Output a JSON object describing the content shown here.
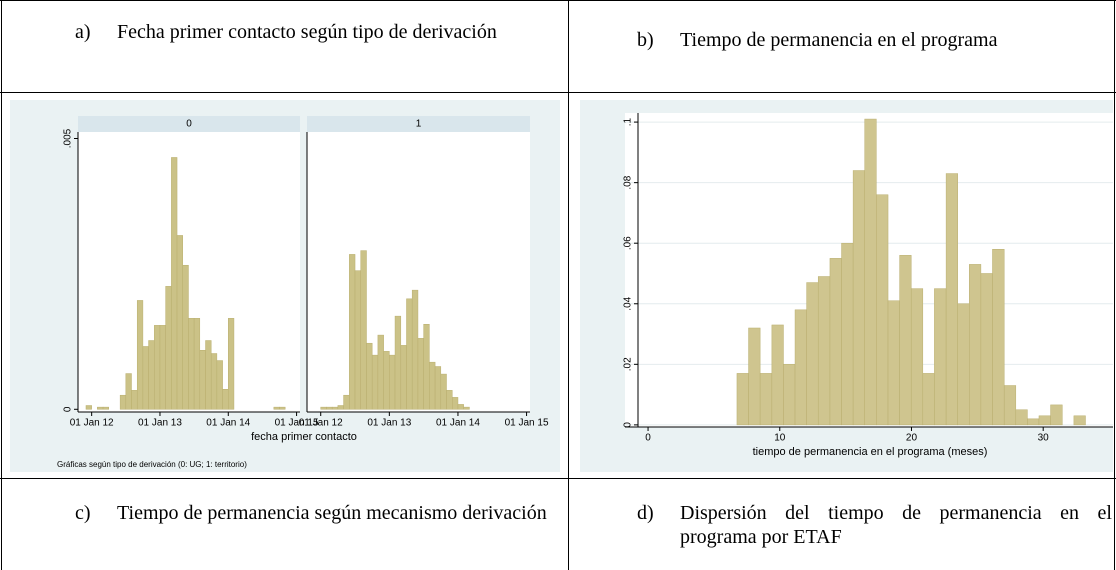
{
  "captions": {
    "a": {
      "label": "a)",
      "text": "Fecha primer contacto según tipo de derivación"
    },
    "b": {
      "label": "b)",
      "text": "Tiempo de permanencia en el programa"
    },
    "c": {
      "label": "c)",
      "text": "Tiempo de permanencia según mecanismo derivación"
    },
    "d": {
      "label": "d)",
      "text": "Dispersión del tiempo de permanencia en el programa por ETAF"
    }
  },
  "chart_data": [
    {
      "type": "histogram",
      "xlabel": "fecha primer contacto",
      "note": "Gráficas según tipo de derivación (0: UG; 1: territorio)",
      "bins": [
        2011.917,
        2012,
        2012.083,
        2012.167,
        2012.25,
        2012.333,
        2012.417,
        2012.5,
        2012.583,
        2012.667,
        2012.75,
        2012.833,
        2012.917,
        2013,
        2013.083,
        2013.167,
        2013.25,
        2013.333,
        2013.417,
        2013.5,
        2013.583,
        2013.667,
        2013.75,
        2013.833,
        2013.917,
        2014,
        2014.083,
        2014.167,
        2014.25,
        2014.333,
        2014.417,
        2014.5,
        2014.583,
        2014.667,
        2014.75,
        2014.833,
        2014.917,
        2015
      ],
      "series": [
        {
          "name": "0",
          "color": "#cbc287",
          "values": [
            7e-05,
            0,
            4e-05,
            4e-05,
            0,
            0,
            0.00026,
            0.00066,
            0.00035,
            0.00201,
            0.00116,
            0.00127,
            0.00155,
            0.00155,
            0.00227,
            0.00465,
            0.00321,
            0.00266,
            0.00168,
            0.00168,
            0.00109,
            0.00127,
            0.00103,
            0.0009,
            0.00037,
            0.00168,
            0,
            0,
            0,
            0,
            0,
            0,
            0,
            4e-05,
            4e-05,
            0,
            0
          ]
        },
        {
          "name": "1",
          "color": "#cbc287",
          "values": [
            0,
            4e-05,
            4e-05,
            4e-05,
            7e-05,
            0.00026,
            0.00286,
            0.00256,
            0.00293,
            0.00122,
            0.001,
            0.00137,
            0.00107,
            0.001,
            0.00172,
            0.00118,
            0.00204,
            0.0022,
            0.00131,
            0.00157,
            0.00087,
            0.00079,
            0.00065,
            0.00035,
            0.00022,
            9e-05,
            4e-05,
            0,
            0,
            0,
            0,
            0,
            0,
            0,
            0,
            0,
            0
          ]
        }
      ],
      "xlim": [
        2011.8,
        2015.05
      ],
      "xticks": [
        {
          "value": 2012,
          "label": "01 Jan 12"
        },
        {
          "value": 2013,
          "label": "01 Jan 13"
        },
        {
          "value": 2014,
          "label": "01 Jan 14"
        },
        {
          "value": 2015,
          "label": "01 Jan 15"
        }
      ],
      "ylim": [
        -5e-05,
        0.00512
      ],
      "yticks": [
        0,
        {
          "value": 0.005,
          "label": ".005"
        }
      ]
    },
    {
      "type": "histogram",
      "xlabel": "tiempo de permanencia en el programa (meses)",
      "bins": [
        6.75,
        7.63,
        8.51,
        9.4,
        10.28,
        11.16,
        12.04,
        12.92,
        13.81,
        14.69,
        15.57,
        16.45,
        17.33,
        18.22,
        19.1,
        19.98,
        20.86,
        21.74,
        22.63,
        23.51,
        24.39,
        25.27,
        26.15,
        27.04,
        27.92,
        28.8,
        29.68,
        30.56,
        31.45,
        32.33,
        33.21
      ],
      "series": [
        {
          "color": "#cfc58f",
          "values": [
            0.017,
            0.032,
            0.017,
            0.033,
            0.02,
            0.038,
            0.047,
            0.049,
            0.055,
            0.06,
            0.084,
            0.101,
            0.076,
            0.041,
            0.056,
            0.045,
            0.017,
            0.045,
            0.083,
            0.04,
            0.053,
            0.05,
            0.058,
            0.013,
            0.005,
            0.002,
            0.003,
            0.0066,
            0,
            0.003
          ]
        }
      ],
      "xlim": [
        -1.75,
        35.3
      ],
      "xticks": [
        0,
        10,
        20,
        30
      ],
      "ylim": [
        -0.0007,
        0.103
      ],
      "yticks": [
        0,
        {
          "value": 0.02,
          "label": ".02"
        },
        {
          "value": 0.04,
          "label": ".04"
        },
        {
          "value": 0.06,
          "label": ".06"
        },
        {
          "value": 0.08,
          "label": ".08"
        },
        {
          "value": 0.1,
          "label": ".1"
        }
      ],
      "grid": true
    }
  ]
}
